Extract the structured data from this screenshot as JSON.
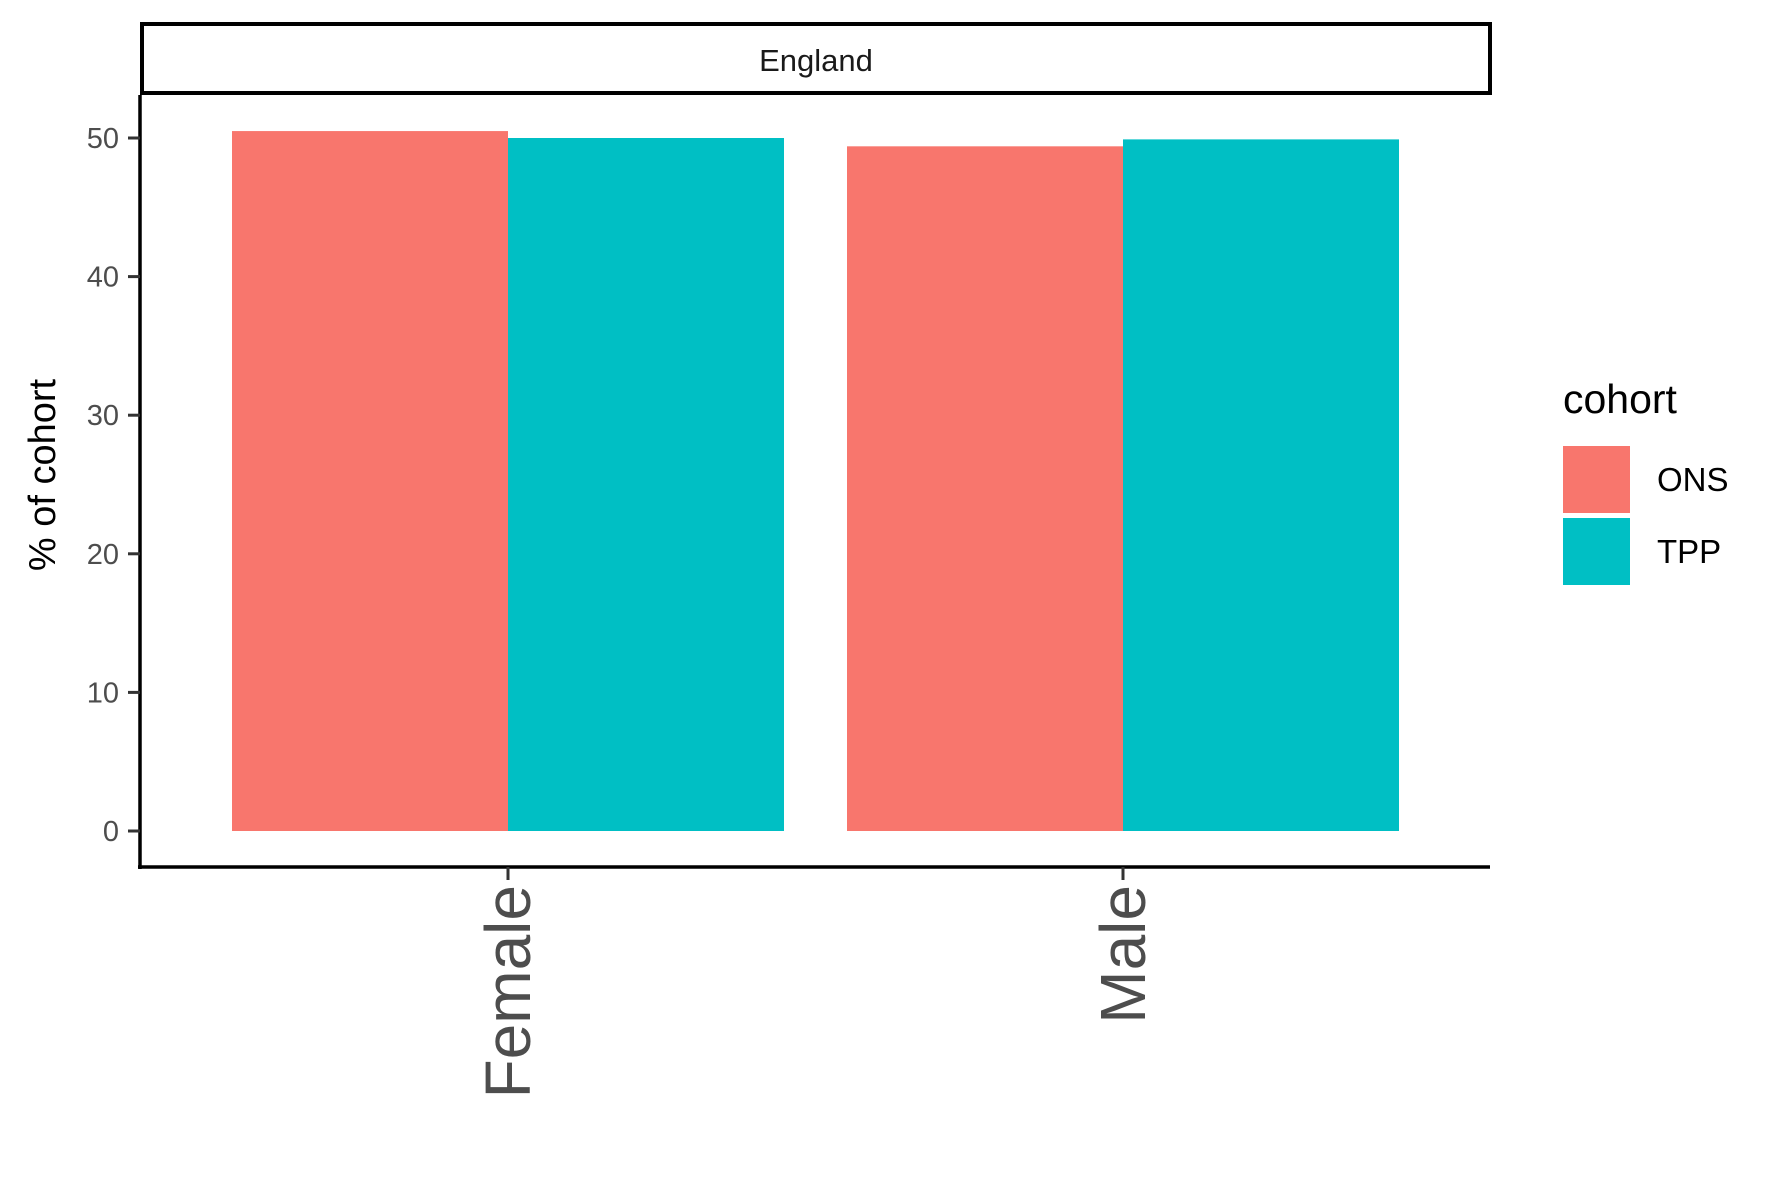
{
  "chart_data": {
    "type": "bar",
    "facet": "England",
    "categories": [
      "Female",
      "Male"
    ],
    "series": [
      {
        "name": "ONS",
        "values": [
          50.5,
          49.4
        ],
        "color": "#F8766D"
      },
      {
        "name": "TPP",
        "values": [
          50.0,
          49.9
        ],
        "color": "#00BFC4"
      }
    ],
    "ylabel": "% of cohort",
    "xlabel": "",
    "ylim": [
      0,
      52.5
    ],
    "yticks": [
      0,
      10,
      20,
      30,
      40,
      50
    ],
    "legend": {
      "title": "cohort",
      "placement": "right"
    },
    "grid": false
  }
}
